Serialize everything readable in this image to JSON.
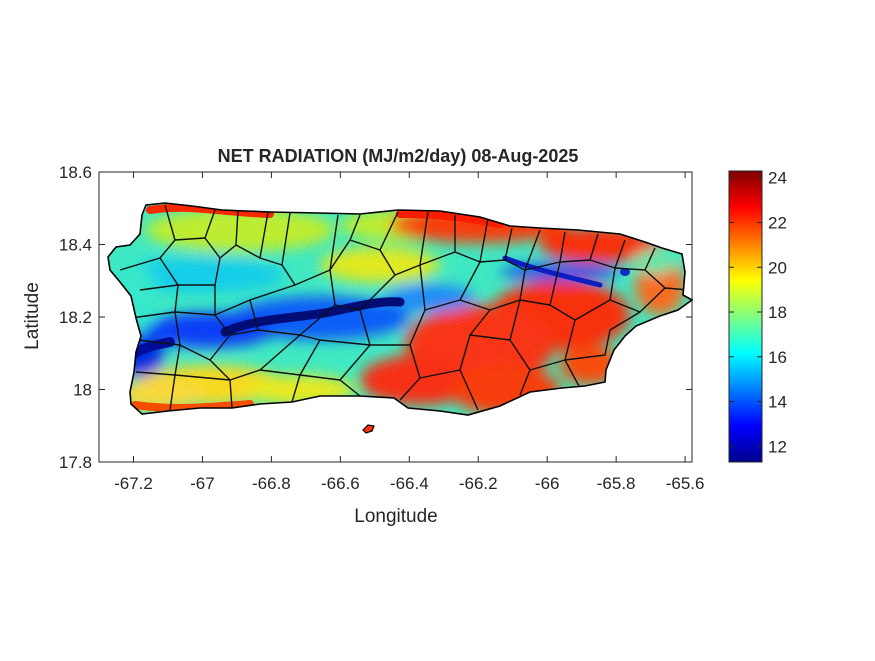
{
  "chart_data": {
    "type": "heatmap",
    "title": "NET RADIATION (MJ/m2/day) 08-Aug-2025",
    "xlabel": "Longitude",
    "ylabel": "Latitude",
    "xlim": [
      -67.3,
      -65.58
    ],
    "ylim": [
      17.8,
      18.6
    ],
    "x_ticks": [
      -67.2,
      -67,
      -66.8,
      -66.6,
      -66.4,
      -66.2,
      -66,
      -65.8,
      -65.6
    ],
    "x_tick_labels": [
      "-67.2",
      "-67",
      "-66.8",
      "-66.6",
      "-66.4",
      "-66.2",
      "-66",
      "-65.8",
      "-65.6"
    ],
    "y_ticks": [
      17.8,
      18,
      18.2,
      18.4,
      18.6
    ],
    "y_tick_labels": [
      "17.8",
      "18",
      "18.2",
      "18.4",
      "18.6"
    ],
    "colorbar": {
      "colormap": "jet",
      "range": [
        11.3,
        24.3
      ],
      "ticks": [
        12,
        14,
        16,
        18,
        20,
        22,
        24
      ],
      "tick_labels": [
        "12",
        "14",
        "16",
        "18",
        "20",
        "22",
        "24"
      ],
      "colors": [
        "#00008f",
        "#0000ff",
        "#00ffff",
        "#ffff00",
        "#ff0000",
        "#800000"
      ]
    },
    "field": {
      "region": "Puerto Rico",
      "overall_range": [
        11.5,
        24
      ],
      "regions": [
        {
          "area": "north coast",
          "value": 22
        },
        {
          "area": "northeast",
          "value": 22.5
        },
        {
          "area": "central mountain ridge",
          "value": 13
        },
        {
          "area": "western interior",
          "value": 16
        },
        {
          "area": "southwest",
          "value": 12.5
        },
        {
          "area": "south-central coast",
          "value": 22
        },
        {
          "area": "southeast",
          "value": 21
        },
        {
          "area": "far east",
          "value": 17
        }
      ]
    },
    "grid": false,
    "municipal_boundaries": true
  }
}
